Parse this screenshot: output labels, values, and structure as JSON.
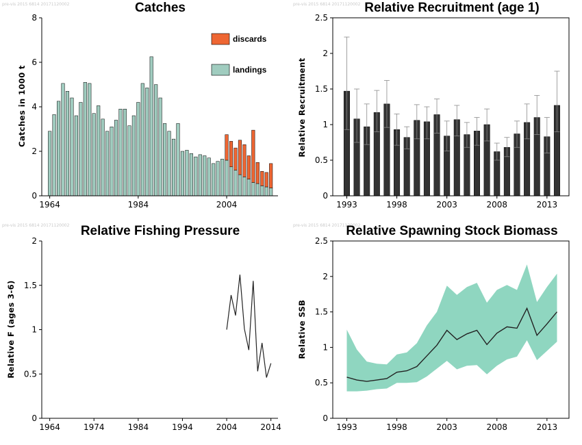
{
  "watermark": "pre-vis 2015 6814 20171120002",
  "colors": {
    "landings": "#a0ccbf",
    "discards": "#ee6633",
    "recruit_bar": "#333333",
    "ssb_band": "#8fd6c0",
    "line": "#222222",
    "axis": "#000000"
  },
  "chart_data": [
    {
      "id": "catches",
      "type": "bar",
      "title": "Catches",
      "ylabel": "Catches in 1000 t",
      "xlim": [
        1962.2,
        2015.6
      ],
      "ylim": [
        0,
        8
      ],
      "xticks": [
        1964,
        1984,
        2004
      ],
      "yticks": [
        0,
        2,
        4,
        6,
        8
      ],
      "legend": {
        "position": "top-right",
        "entries": [
          "discards",
          "landings"
        ]
      },
      "x": [
        1964,
        1965,
        1966,
        1967,
        1968,
        1969,
        1970,
        1971,
        1972,
        1973,
        1974,
        1975,
        1976,
        1977,
        1978,
        1979,
        1980,
        1981,
        1982,
        1983,
        1984,
        1985,
        1986,
        1987,
        1988,
        1989,
        1990,
        1991,
        1992,
        1993,
        1994,
        1995,
        1996,
        1997,
        1998,
        1999,
        2000,
        2001,
        2002,
        2003,
        2004,
        2005,
        2006,
        2007,
        2008,
        2009,
        2010,
        2011,
        2012,
        2013,
        2014
      ],
      "series": [
        {
          "name": "landings",
          "values": [
            2.9,
            3.65,
            4.25,
            5.05,
            4.7,
            4.4,
            3.6,
            4.2,
            5.1,
            5.05,
            3.7,
            4.05,
            3.45,
            2.9,
            3.1,
            3.4,
            3.9,
            3.9,
            3.15,
            3.6,
            4.2,
            5.05,
            4.85,
            6.25,
            5.0,
            4.4,
            3.25,
            2.9,
            2.55,
            3.25,
            2.0,
            2.05,
            1.9,
            1.75,
            1.85,
            1.8,
            1.7,
            1.45,
            1.55,
            1.65,
            1.6,
            1.3,
            1.15,
            0.95,
            0.85,
            0.75,
            0.6,
            0.55,
            0.45,
            0.4,
            0.35
          ]
        },
        {
          "name": "discards",
          "values": [
            0,
            0,
            0,
            0,
            0,
            0,
            0,
            0,
            0,
            0,
            0,
            0,
            0,
            0,
            0,
            0,
            0,
            0,
            0,
            0,
            0,
            0,
            0,
            0,
            0,
            0,
            0,
            0,
            0,
            0,
            0,
            0,
            0,
            0,
            0,
            0,
            0,
            0,
            0,
            0,
            1.15,
            1.15,
            1.0,
            1.55,
            1.45,
            1.05,
            2.35,
            0.95,
            0.65,
            0.65,
            1.1
          ]
        }
      ]
    },
    {
      "id": "recruitment",
      "type": "bar",
      "title": "Relative Recruitment (age 1)",
      "ylabel": "Relative Recruitment",
      "xlim": [
        1991.6,
        2015.2
      ],
      "ylim": [
        0,
        2.5
      ],
      "xticks": [
        1993,
        1998,
        2003,
        2008,
        2013
      ],
      "yticks": [
        0,
        0.5,
        1,
        1.5,
        2,
        2.5
      ],
      "x": [
        1993,
        1994,
        1995,
        1996,
        1997,
        1998,
        1999,
        2000,
        2001,
        2002,
        2003,
        2004,
        2005,
        2006,
        2007,
        2008,
        2009,
        2010,
        2011,
        2012,
        2013,
        2014
      ],
      "values": [
        1.47,
        1.08,
        0.97,
        1.17,
        1.29,
        0.93,
        0.82,
        1.06,
        1.04,
        1.14,
        0.84,
        1.07,
        0.86,
        0.91,
        1.0,
        0.62,
        0.68,
        0.87,
        1.03,
        1.1,
        0.83,
        1.27
      ],
      "upper": [
        2.23,
        1.5,
        1.29,
        1.48,
        1.62,
        1.15,
        0.97,
        1.28,
        1.25,
        1.36,
        1.05,
        1.27,
        1.03,
        1.1,
        1.22,
        0.74,
        0.82,
        1.05,
        1.29,
        1.41,
        1.1,
        1.75
      ],
      "lower": [
        0.93,
        0.75,
        0.72,
        0.9,
        0.96,
        0.71,
        0.66,
        0.8,
        0.8,
        0.88,
        0.63,
        0.84,
        0.68,
        0.71,
        0.77,
        0.5,
        0.55,
        0.68,
        0.8,
        0.86,
        0.6,
        0.9
      ]
    },
    {
      "id": "fishing-pressure",
      "type": "line",
      "title": "Relative Fishing Pressure",
      "ylabel": "Relative F (ages 3-6)",
      "xlim": [
        1962.2,
        2015.6
      ],
      "ylim": [
        0,
        2
      ],
      "xticks": [
        1964,
        1974,
        1984,
        1994,
        2004,
        2014
      ],
      "yticks": [
        0,
        0.5,
        1,
        1.5,
        2
      ],
      "x": [
        2004,
        2005,
        2006,
        2007,
        2008,
        2009,
        2010,
        2011,
        2012,
        2013,
        2014
      ],
      "values": [
        1.0,
        1.39,
        1.16,
        1.62,
        1.01,
        0.77,
        1.55,
        0.53,
        0.85,
        0.46,
        0.62
      ]
    },
    {
      "id": "ssb",
      "type": "area",
      "title": "Relative Spawning Stock Biomass",
      "ylabel": "Relative SSB",
      "xlim": [
        1991.6,
        2015.2
      ],
      "ylim": [
        0,
        2.5
      ],
      "xticks": [
        1993,
        1998,
        2003,
        2008,
        2013
      ],
      "yticks": [
        0,
        0.5,
        1,
        1.5,
        2,
        2.5
      ],
      "x": [
        1993,
        1994,
        1995,
        1996,
        1997,
        1998,
        1999,
        2000,
        2001,
        2002,
        2003,
        2004,
        2005,
        2006,
        2007,
        2008,
        2009,
        2010,
        2011,
        2012,
        2013,
        2014
      ],
      "values": [
        0.58,
        0.54,
        0.52,
        0.54,
        0.56,
        0.65,
        0.67,
        0.73,
        0.88,
        1.03,
        1.24,
        1.11,
        1.19,
        1.24,
        1.04,
        1.2,
        1.29,
        1.27,
        1.55,
        1.17,
        1.33,
        1.5
      ],
      "upper": [
        1.25,
        0.97,
        0.8,
        0.77,
        0.76,
        0.9,
        0.93,
        1.06,
        1.31,
        1.5,
        1.87,
        1.74,
        1.85,
        1.91,
        1.63,
        1.81,
        1.88,
        1.81,
        2.17,
        1.64,
        1.85,
        2.04
      ],
      "lower": [
        0.38,
        0.38,
        0.39,
        0.41,
        0.42,
        0.5,
        0.5,
        0.51,
        0.59,
        0.7,
        0.81,
        0.69,
        0.74,
        0.75,
        0.62,
        0.74,
        0.83,
        0.87,
        1.1,
        0.82,
        0.95,
        1.08
      ]
    }
  ]
}
